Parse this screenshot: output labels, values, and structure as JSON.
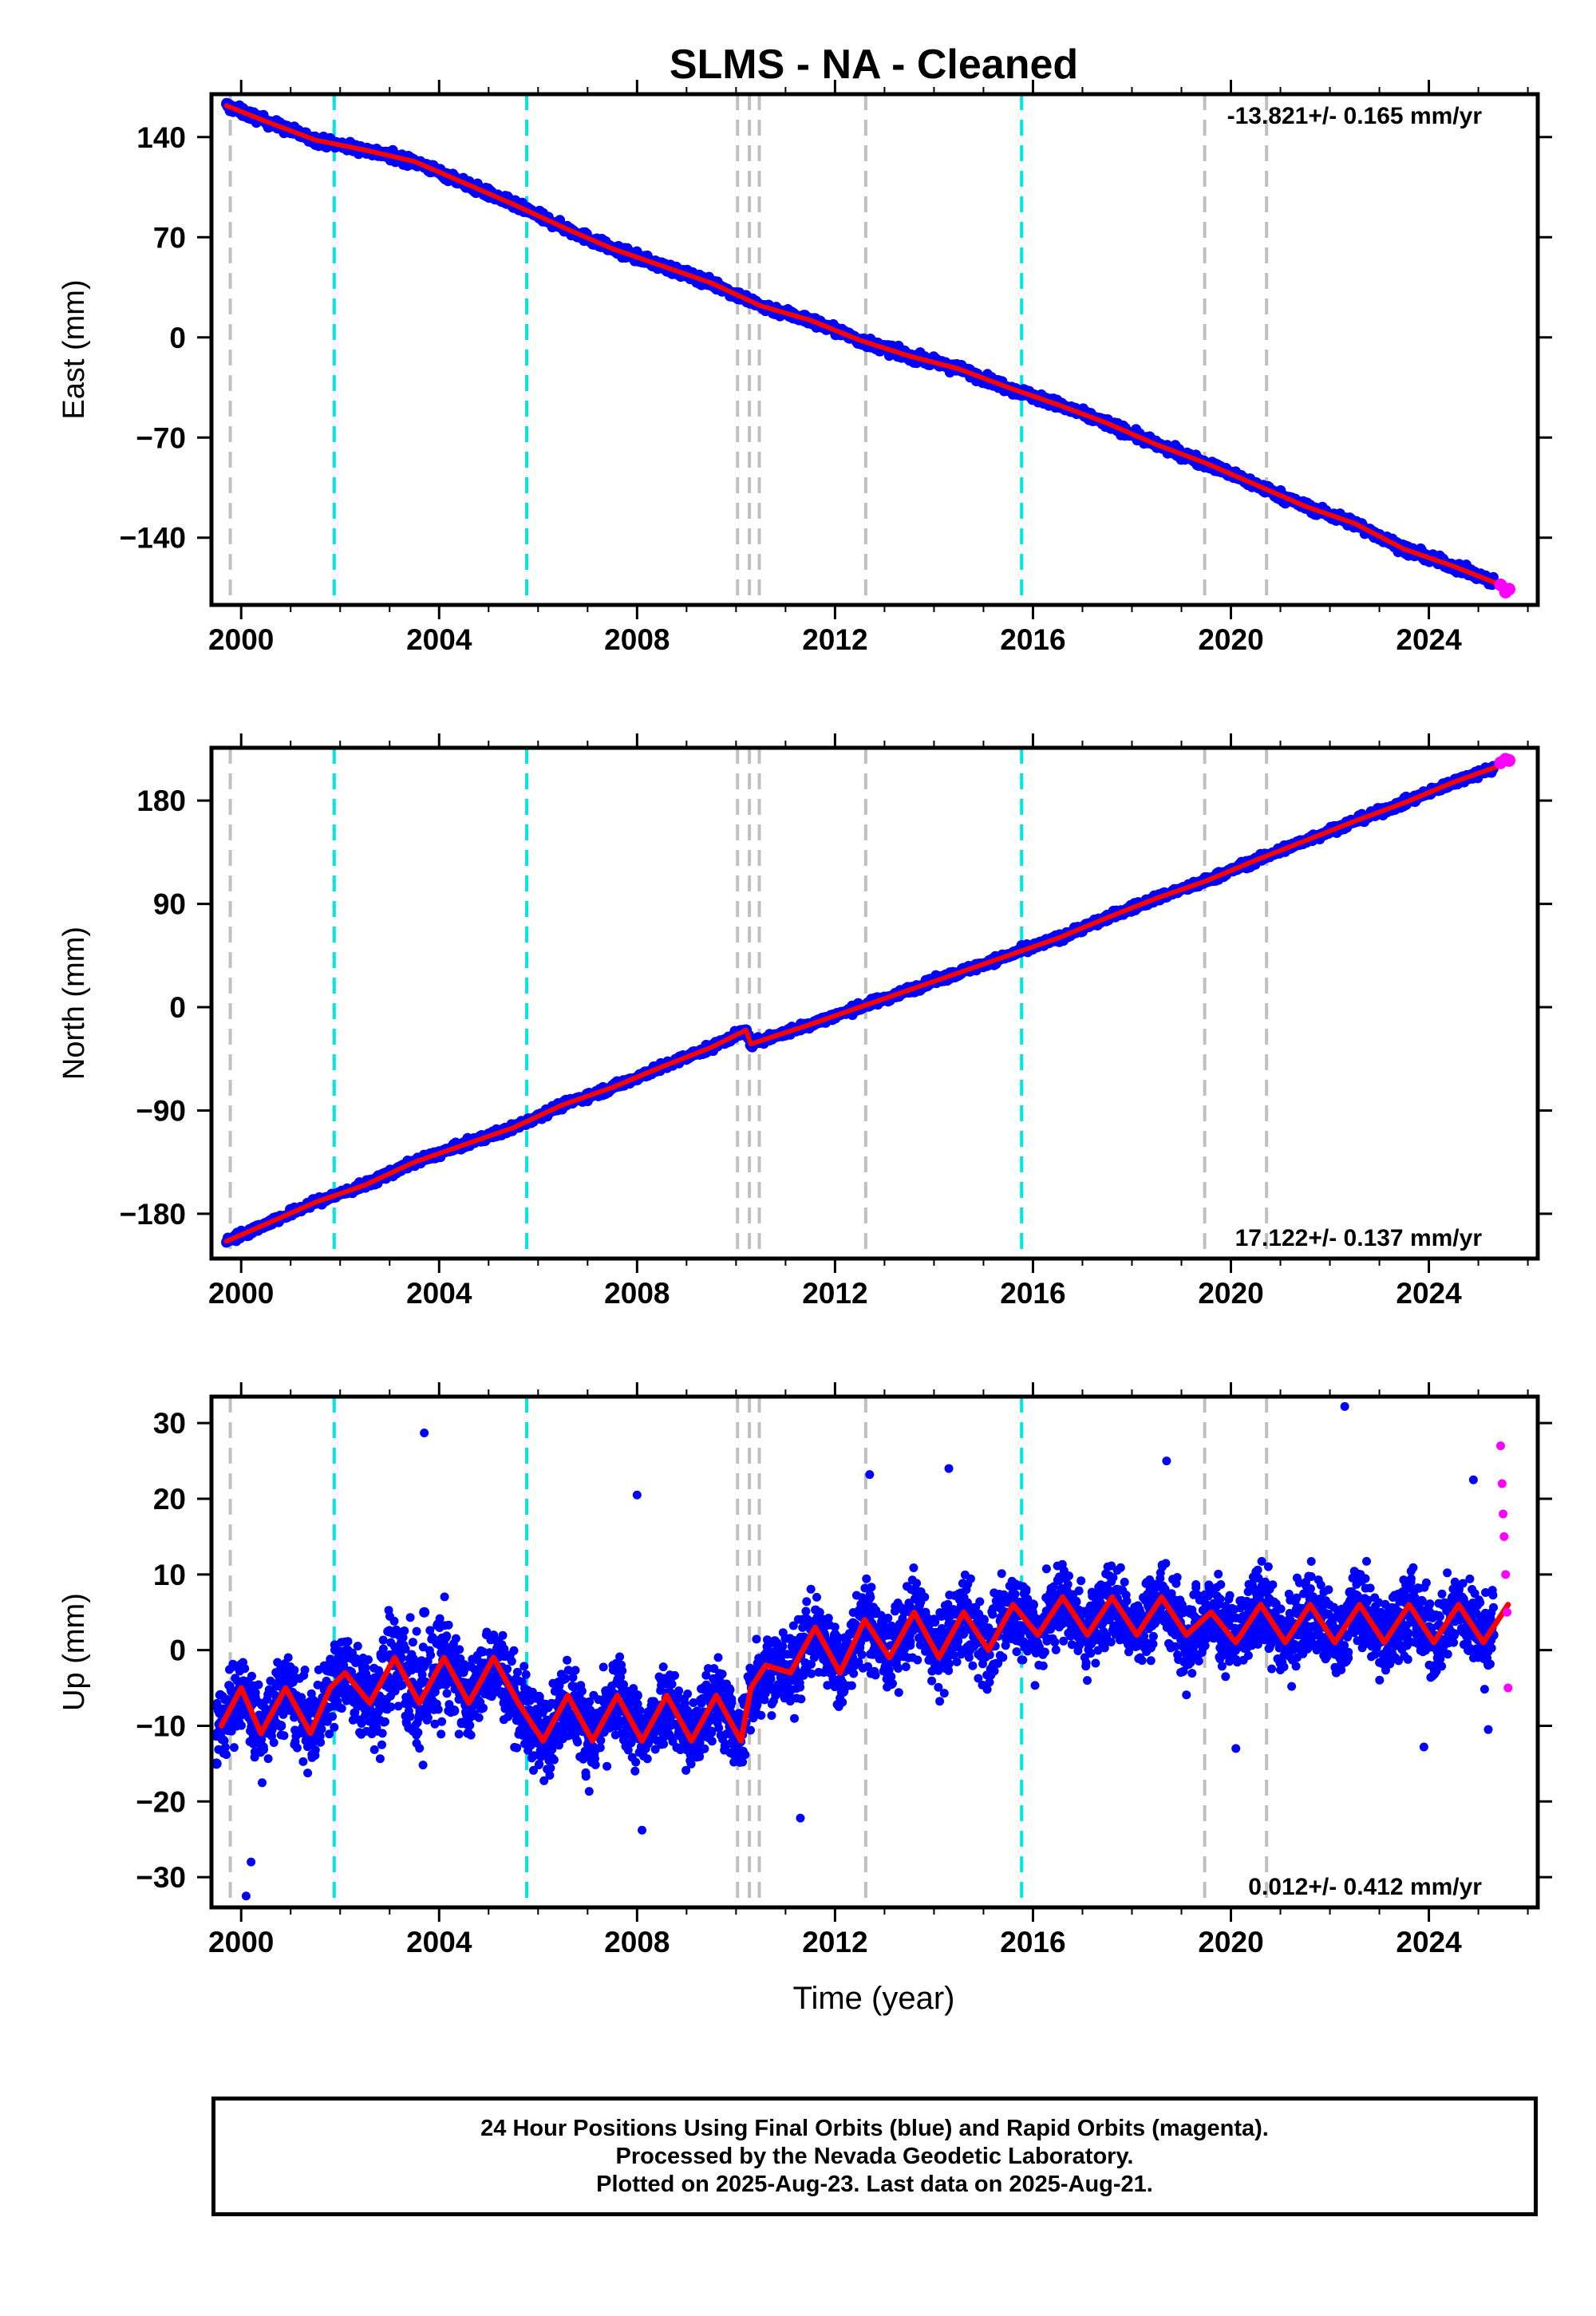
{
  "title": "SLMS  - NA - Cleaned",
  "x_axis_title": "Time (year)",
  "footer": {
    "lines": [
      "24 Hour Positions Using Final Orbits (blue) and Rapid Orbits (magenta).",
      "Processed by the Nevada Geodetic Laboratory.",
      "Plotted on 2025-Aug-23. Last data on 2025-Aug-21."
    ]
  },
  "colors": {
    "final_orbits": "#0000ff",
    "rapid_orbits": "#ff00ff",
    "model_fit": "#ff0000",
    "antenna_change_line": "#00e5e5",
    "equipment_change_line": "#c0c0c0"
  },
  "chart_data": [
    {
      "type": "scatter",
      "panel": "east",
      "ylabel": "East (mm)",
      "xlim": [
        1999.4,
        2026.2
      ],
      "ylim": [
        -187,
        170
      ],
      "xticks": [
        2000,
        2004,
        2008,
        2012,
        2016,
        2020,
        2024
      ],
      "xtick_labels": [
        "2000",
        "2004",
        "2008",
        "2012",
        "2016",
        "2020",
        "2024"
      ],
      "yticks": [
        140,
        70,
        0,
        -70,
        -140
      ],
      "ytick_labels": [
        "140",
        "70",
        "0",
        "−70",
        "−140"
      ],
      "velocity_label": "-13.821+/- 0.165 mm/yr",
      "velocity_label_position": "top-right",
      "vertical_lines": {
        "cyan": [
          2001.88,
          2005.77,
          2015.77
        ],
        "gray": [
          1999.78,
          2010.03,
          2010.27,
          2010.47,
          2012.62,
          2019.47,
          2020.72
        ]
      },
      "series": [
        {
          "role": "final_orbits",
          "x": [
            1999.7,
            2000.5,
            2001.5,
            2002.5,
            2003.5,
            2004.5,
            2005.5,
            2006.5,
            2007.5,
            2008.5,
            2009.5,
            2010.5,
            2011.5,
            2012.5,
            2013.5,
            2014.5,
            2015.5,
            2016.5,
            2017.5,
            2018.5,
            2019.5,
            2020.5,
            2021.5,
            2022.5,
            2023.5,
            2024.5,
            2025.3
          ],
          "y": [
            163,
            152,
            139,
            132,
            124,
            108,
            93,
            77,
            62,
            50,
            38,
            22,
            12,
            -2,
            -13,
            -22,
            -35,
            -47,
            -60,
            -75,
            -88,
            -103,
            -118,
            -130,
            -148,
            -160,
            -172
          ]
        },
        {
          "role": "rapid_orbits",
          "x": [
            2025.45,
            2025.55,
            2025.62
          ],
          "y": [
            -173,
            -178,
            -176
          ]
        },
        {
          "role": "model_fit",
          "x": [
            1999.7,
            2000.5,
            2001.5,
            2002.5,
            2003.5,
            2004.5,
            2005.5,
            2006.5,
            2007.5,
            2008.5,
            2009.5,
            2010.5,
            2011.5,
            2012.5,
            2013.5,
            2014.5,
            2015.5,
            2016.5,
            2017.5,
            2018.5,
            2019.5,
            2020.5,
            2021.5,
            2022.5,
            2023.5,
            2024.5,
            2025.6
          ],
          "y": [
            162,
            151,
            138,
            131,
            123,
            108,
            93,
            77,
            62,
            50,
            38,
            22,
            12,
            -2,
            -13,
            -22,
            -35,
            -47,
            -60,
            -75,
            -88,
            -103,
            -118,
            -130,
            -148,
            -160,
            -175
          ]
        }
      ]
    },
    {
      "type": "scatter",
      "panel": "north",
      "ylabel": "North (mm)",
      "xlim": [
        1999.4,
        2026.2
      ],
      "ylim": [
        -219,
        226
      ],
      "xticks": [
        2000,
        2004,
        2008,
        2012,
        2016,
        2020,
        2024
      ],
      "xtick_labels": [
        "2000",
        "2004",
        "2008",
        "2012",
        "2016",
        "2020",
        "2024"
      ],
      "yticks": [
        180,
        90,
        0,
        -90,
        -180
      ],
      "ytick_labels": [
        "180",
        "90",
        "0",
        "−90",
        "−180"
      ],
      "velocity_label": "17.122+/- 0.137 mm/yr",
      "velocity_label_position": "bottom-right",
      "vertical_lines": {
        "cyan": [
          2001.88,
          2005.77,
          2015.77
        ],
        "gray": [
          1999.78,
          2010.03,
          2010.27,
          2010.47,
          2012.62,
          2019.47,
          2020.72
        ]
      },
      "series": [
        {
          "role": "final_orbits",
          "x": [
            1999.7,
            2000.5,
            2001.5,
            2002.5,
            2003.5,
            2004.5,
            2005.5,
            2006.5,
            2007.5,
            2008.5,
            2009.5,
            2010.2,
            2010.3,
            2011.5,
            2012.5,
            2013.5,
            2014.5,
            2015.5,
            2016.5,
            2017.5,
            2018.5,
            2019.5,
            2020.5,
            2021.5,
            2022.5,
            2023.5,
            2024.5,
            2025.3
          ],
          "y": [
            -205,
            -190,
            -170,
            -155,
            -135,
            -120,
            -105,
            -85,
            -70,
            -52,
            -35,
            -20,
            -32,
            -15,
            0,
            15,
            30,
            45,
            60,
            78,
            95,
            110,
            128,
            145,
            162,
            178,
            196,
            210
          ]
        },
        {
          "role": "rapid_orbits",
          "x": [
            2025.45,
            2025.55,
            2025.62
          ],
          "y": [
            213,
            216,
            215
          ]
        },
        {
          "role": "model_fit",
          "x": [
            1999.7,
            2000.5,
            2001.5,
            2002.5,
            2003.5,
            2004.5,
            2005.5,
            2006.5,
            2007.5,
            2008.5,
            2009.5,
            2010.2,
            2010.3,
            2011.5,
            2012.5,
            2013.5,
            2014.5,
            2015.5,
            2016.5,
            2017.5,
            2018.5,
            2019.5,
            2020.5,
            2021.5,
            2022.5,
            2023.5,
            2024.5,
            2025.6
          ],
          "y": [
            -204,
            -189,
            -170,
            -155,
            -135,
            -120,
            -105,
            -85,
            -70,
            -52,
            -35,
            -20,
            -32,
            -15,
            0,
            15,
            30,
            45,
            60,
            78,
            95,
            110,
            128,
            145,
            162,
            178,
            196,
            213
          ]
        }
      ]
    },
    {
      "type": "scatter",
      "panel": "up",
      "ylabel": "Up (mm)",
      "xlim": [
        1999.4,
        2026.2
      ],
      "ylim": [
        -34,
        33.5
      ],
      "xticks": [
        2000,
        2004,
        2008,
        2012,
        2016,
        2020,
        2024
      ],
      "xtick_labels": [
        "2000",
        "2004",
        "2008",
        "2012",
        "2016",
        "2020",
        "2024"
      ],
      "yticks": [
        30,
        20,
        10,
        0,
        -10,
        -20,
        -30
      ],
      "ytick_labels": [
        "30",
        "20",
        "10",
        "0",
        "−10",
        "−20",
        "−30"
      ],
      "velocity_label": "0.012+/- 0.412 mm/yr",
      "velocity_label_position": "bottom-right",
      "vertical_lines": {
        "cyan": [
          2001.88,
          2005.77,
          2015.77
        ],
        "gray": [
          1999.78,
          2010.03,
          2010.27,
          2010.47,
          2012.62,
          2019.47,
          2020.72
        ]
      },
      "series": [
        {
          "role": "final_orbits",
          "x": [
            1999.5,
            2000.2,
            2000.8,
            2001.3,
            2001.9,
            2002.5,
            2003.2,
            2003.7,
            2004.3,
            2004.9,
            2005.5,
            2006.0,
            2006.5,
            2007.0,
            2007.5,
            2008.0,
            2008.5,
            2009.0,
            2009.5,
            2010.0,
            2010.4,
            2011.0,
            2011.5,
            2012.0,
            2012.5,
            2013.0,
            2013.5,
            2014.0,
            2014.5,
            2015.0,
            2015.5,
            2016.0,
            2016.5,
            2017.0,
            2017.5,
            2018.0,
            2018.5,
            2019.0,
            2019.5,
            2020.0,
            2020.5,
            2021.0,
            2021.5,
            2022.0,
            2022.5,
            2023.0,
            2023.5,
            2024.0,
            2024.5,
            2025.0,
            2025.3
          ],
          "y": [
            -15,
            -5,
            -10,
            -8,
            -6,
            -4,
            2,
            5,
            -8,
            -3,
            -5,
            -12,
            -8,
            -7,
            -10,
            -6,
            -9,
            -8,
            -7,
            -10,
            -4,
            -2,
            0,
            2,
            1,
            3,
            2,
            4,
            3,
            4,
            3,
            6,
            4,
            3,
            5,
            2,
            4,
            2,
            3,
            5,
            2,
            4,
            3,
            2,
            4,
            3,
            2,
            3,
            2,
            3,
            2
          ]
        },
        {
          "role": "rapid_orbits",
          "x": [
            2025.45,
            2025.48,
            2025.5,
            2025.52,
            2025.55,
            2025.58,
            2025.6
          ],
          "y": [
            27,
            22,
            18,
            15,
            10,
            5,
            -5
          ]
        },
        {
          "role": "model_fit",
          "x": [
            1999.6,
            2000.0,
            2000.4,
            2000.9,
            2001.4,
            2001.8,
            2002.1,
            2002.6,
            2003.1,
            2003.6,
            2004.1,
            2004.6,
            2005.1,
            2005.6,
            2006.1,
            2006.6,
            2007.1,
            2007.6,
            2008.1,
            2008.6,
            2009.1,
            2009.6,
            2010.1,
            2010.3,
            2010.6,
            2011.1,
            2011.6,
            2012.1,
            2012.6,
            2013.1,
            2013.6,
            2014.1,
            2014.6,
            2015.1,
            2015.6,
            2016.1,
            2016.6,
            2017.1,
            2017.6,
            2018.1,
            2018.6,
            2019.1,
            2019.6,
            2020.1,
            2020.6,
            2021.1,
            2021.6,
            2022.1,
            2022.6,
            2023.1,
            2023.6,
            2024.1,
            2024.6,
            2025.1,
            2025.6
          ],
          "y": [
            -10,
            -5,
            -11,
            -5,
            -11,
            -5,
            -3,
            -7,
            -1,
            -7,
            -1,
            -7,
            -1,
            -7,
            -12,
            -6,
            -12,
            -6,
            -12,
            -6,
            -12,
            -6,
            -12,
            -5,
            -2,
            -3,
            3,
            -3,
            4,
            -1,
            5,
            -1,
            5,
            0,
            6,
            2,
            7,
            2,
            7,
            2,
            7,
            2,
            5,
            1,
            6,
            1,
            6,
            1,
            6,
            1,
            6,
            1,
            6,
            1,
            6
          ]
        }
      ]
    }
  ]
}
